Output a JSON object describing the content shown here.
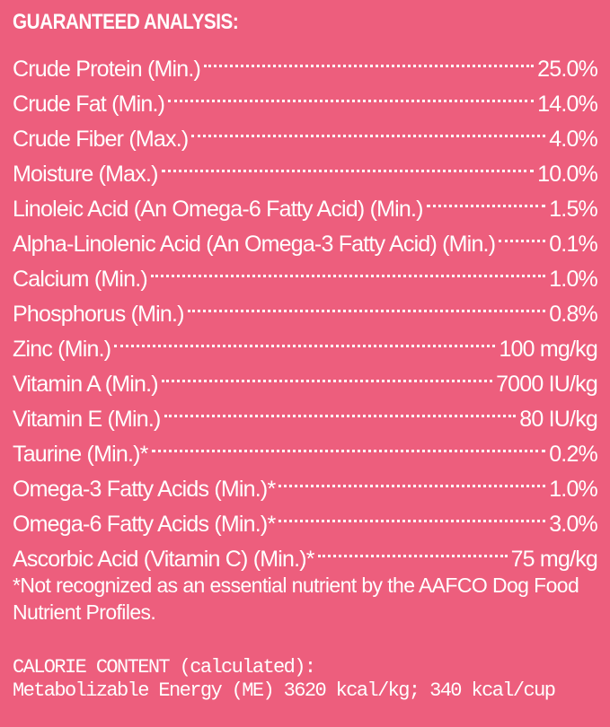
{
  "heading": "GUARANTEED ANALYSIS:",
  "rows": [
    {
      "label": "Crude Protein (Min.)",
      "value": "25.0%"
    },
    {
      "label": "Crude Fat (Min.)",
      "value": "14.0%"
    },
    {
      "label": "Crude Fiber (Max.)",
      "value": "4.0%"
    },
    {
      "label": "Moisture (Max.)",
      "value": "10.0%"
    },
    {
      "label": "Linoleic Acid (An Omega-6 Fatty Acid) (Min.)",
      "value": "1.5%"
    },
    {
      "label": "Alpha-Linolenic Acid (An Omega-3 Fatty Acid) (Min.)",
      "value": "0.1%"
    },
    {
      "label": "Calcium (Min.)",
      "value": "1.0%"
    },
    {
      "label": "Phosphorus (Min.)",
      "value": "0.8%"
    },
    {
      "label": "Zinc (Min.)",
      "value": "100 mg/kg"
    },
    {
      "label": "Vitamin A (Min.)",
      "value": "7000 IU/kg"
    },
    {
      "label": "Vitamin E (Min.)",
      "value": "80 IU/kg"
    },
    {
      "label": "Taurine (Min.)*",
      "value": "0.2%"
    },
    {
      "label": "Omega-3 Fatty Acids (Min.)*",
      "value": "1.0%"
    },
    {
      "label": "Omega-6 Fatty Acids (Min.)*",
      "value": "3.0%"
    },
    {
      "label": "Ascorbic Acid (Vitamin C) (Min.)*",
      "value": "75 mg/kg"
    }
  ],
  "footnote": "*Not recognized as an essential nutrient by the AAFCO Dog Food Nutrient Profiles.",
  "calorie": {
    "heading": "CALORIE CONTENT (calculated):",
    "line": "Metabolizable Energy (ME) 3620 kcal/kg; 340 kcal/cup"
  },
  "colors": {
    "background": "#ED5E7D",
    "text": "#FFFFFF"
  }
}
